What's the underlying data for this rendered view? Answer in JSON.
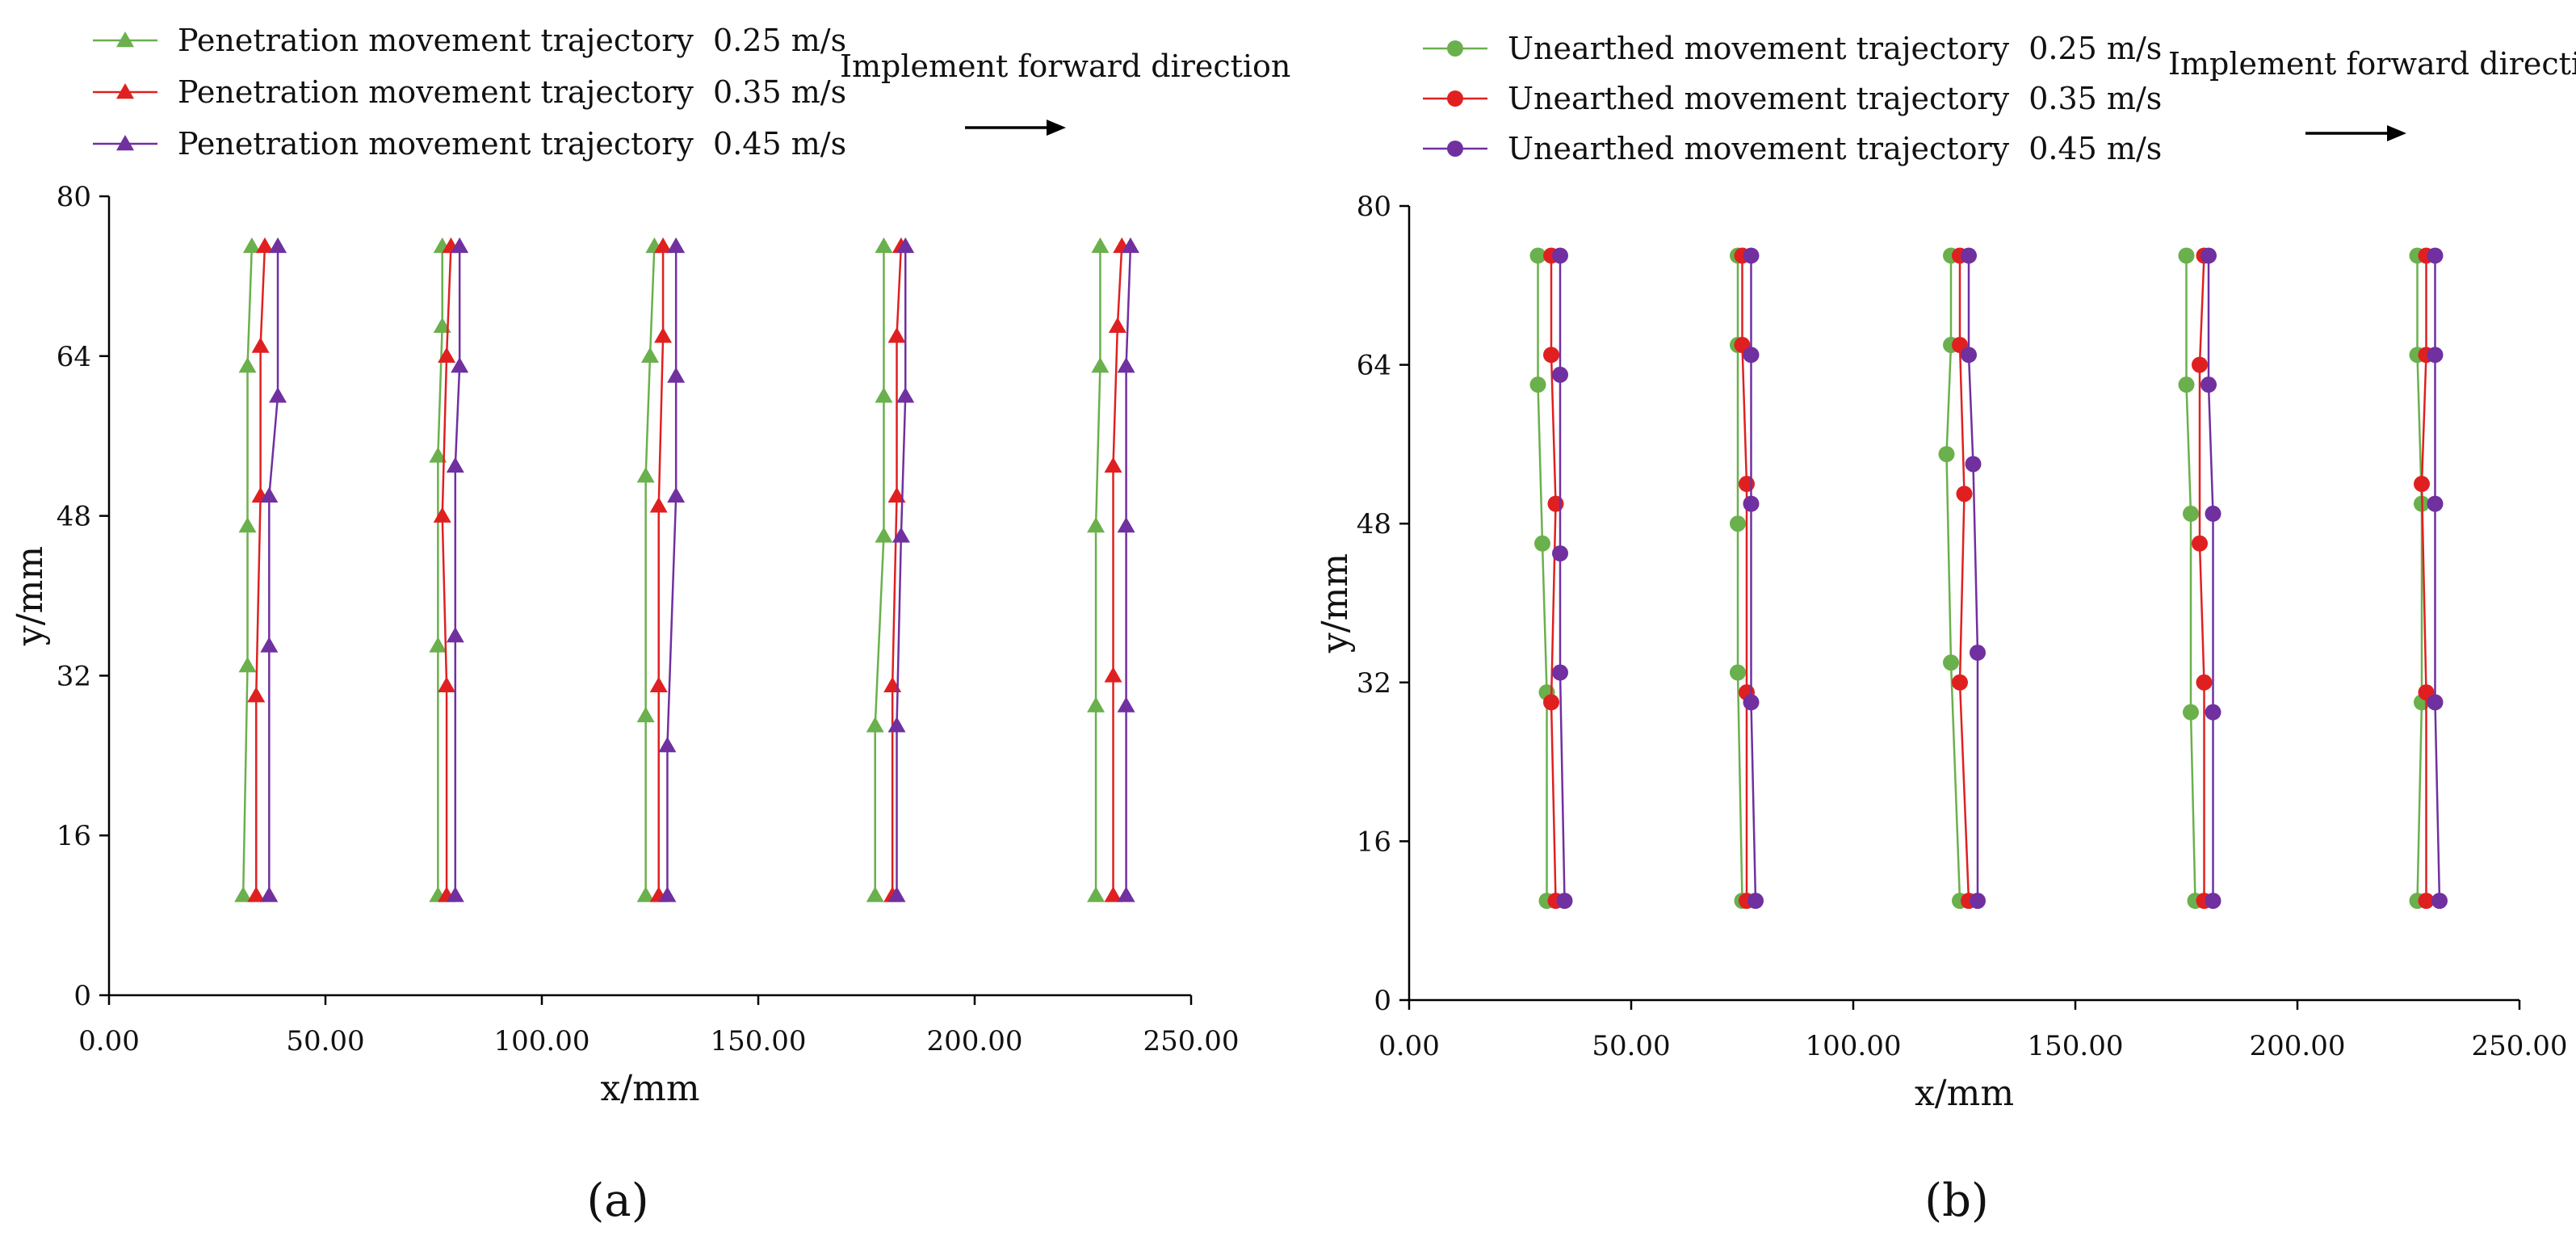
{
  "chart_data": [
    {
      "type": "line",
      "panel_label": "(a)",
      "xlabel": "x/mm",
      "ylabel": "y/mm",
      "xlim": [
        0,
        250
      ],
      "ylim": [
        0,
        80
      ],
      "x_ticks": [
        "0.00",
        "50.00",
        "100.00",
        "150.00",
        "200.00",
        "250.00"
      ],
      "y_ticks": [
        "0",
        "16",
        "32",
        "48",
        "64",
        "80"
      ],
      "grid": false,
      "legend_position": "top-left",
      "direction_label": "Implement forward direction",
      "marker": "triangle",
      "series": [
        {
          "name": "Penetration movement trajectory  0.25 m/s",
          "color": "#6ab04c",
          "paths": [
            [
              [
                31,
                10
              ],
              [
                32,
                33
              ],
              [
                32,
                47
              ],
              [
                32,
                63
              ],
              [
                33,
                75
              ]
            ],
            [
              [
                76,
                10
              ],
              [
                76,
                35
              ],
              [
                76,
                54
              ],
              [
                77,
                67
              ],
              [
                77,
                75
              ]
            ],
            [
              [
                124,
                10
              ],
              [
                124,
                28
              ],
              [
                124,
                52
              ],
              [
                125,
                64
              ],
              [
                126,
                75
              ]
            ],
            [
              [
                177,
                10
              ],
              [
                177,
                27
              ],
              [
                179,
                46
              ],
              [
                179,
                60
              ],
              [
                179,
                75
              ]
            ],
            [
              [
                228,
                10
              ],
              [
                228,
                29
              ],
              [
                228,
                47
              ],
              [
                229,
                63
              ],
              [
                229,
                75
              ]
            ]
          ]
        },
        {
          "name": "Penetration movement trajectory  0.35 m/s",
          "color": "#e02020",
          "paths": [
            [
              [
                34,
                10
              ],
              [
                34,
                30
              ],
              [
                35,
                50
              ],
              [
                35,
                65
              ],
              [
                36,
                75
              ]
            ],
            [
              [
                78,
                10
              ],
              [
                78,
                31
              ],
              [
                77,
                48
              ],
              [
                78,
                64
              ],
              [
                79,
                75
              ]
            ],
            [
              [
                127,
                10
              ],
              [
                127,
                31
              ],
              [
                127,
                49
              ],
              [
                128,
                66
              ],
              [
                128,
                75
              ]
            ],
            [
              [
                181,
                10
              ],
              [
                181,
                31
              ],
              [
                182,
                50
              ],
              [
                182,
                66
              ],
              [
                183,
                75
              ]
            ],
            [
              [
                232,
                10
              ],
              [
                232,
                32
              ],
              [
                232,
                53
              ],
              [
                233,
                67
              ],
              [
                234,
                75
              ]
            ]
          ]
        },
        {
          "name": "Penetration movement trajectory  0.45 m/s",
          "color": "#7030a0",
          "paths": [
            [
              [
                37,
                10
              ],
              [
                37,
                35
              ],
              [
                37,
                50
              ],
              [
                39,
                60
              ],
              [
                39,
                75
              ]
            ],
            [
              [
                80,
                10
              ],
              [
                80,
                36
              ],
              [
                80,
                53
              ],
              [
                81,
                63
              ],
              [
                81,
                75
              ]
            ],
            [
              [
                129,
                10
              ],
              [
                129,
                25
              ],
              [
                131,
                50
              ],
              [
                131,
                62
              ],
              [
                131,
                75
              ]
            ],
            [
              [
                182,
                10
              ],
              [
                182,
                27
              ],
              [
                183,
                46
              ],
              [
                184,
                60
              ],
              [
                184,
                75
              ]
            ],
            [
              [
                235,
                10
              ],
              [
                235,
                29
              ],
              [
                235,
                47
              ],
              [
                235,
                63
              ],
              [
                236,
                75
              ]
            ]
          ]
        }
      ]
    },
    {
      "type": "line",
      "panel_label": "(b)",
      "xlabel": "x/mm",
      "ylabel": "y/mm",
      "xlim": [
        0,
        250
      ],
      "ylim": [
        0,
        80
      ],
      "x_ticks": [
        "0.00",
        "50.00",
        "100.00",
        "150.00",
        "200.00",
        "250.00"
      ],
      "y_ticks": [
        "0",
        "16",
        "32",
        "48",
        "64",
        "80"
      ],
      "grid": false,
      "legend_position": "top-left",
      "direction_label": "Implement forward direction",
      "marker": "circle",
      "series": [
        {
          "name": "Unearthed movement trajectory  0.25 m/s",
          "color": "#6ab04c",
          "paths": [
            [
              [
                31,
                10
              ],
              [
                31,
                31
              ],
              [
                30,
                46
              ],
              [
                29,
                62
              ],
              [
                29,
                75
              ]
            ],
            [
              [
                75,
                10
              ],
              [
                74,
                33
              ],
              [
                74,
                48
              ],
              [
                74,
                66
              ],
              [
                74,
                75
              ]
            ],
            [
              [
                124,
                10
              ],
              [
                122,
                34
              ],
              [
                121,
                55
              ],
              [
                122,
                66
              ],
              [
                122,
                75
              ]
            ],
            [
              [
                177,
                10
              ],
              [
                176,
                29
              ],
              [
                176,
                49
              ],
              [
                175,
                62
              ],
              [
                175,
                75
              ]
            ],
            [
              [
                227,
                10
              ],
              [
                228,
                30
              ],
              [
                228,
                50
              ],
              [
                227,
                65
              ],
              [
                227,
                75
              ]
            ]
          ]
        },
        {
          "name": "Unearthed movement trajectory  0.35 m/s",
          "color": "#e02020",
          "paths": [
            [
              [
                33,
                10
              ],
              [
                32,
                30
              ],
              [
                33,
                50
              ],
              [
                32,
                65
              ],
              [
                32,
                75
              ]
            ],
            [
              [
                76,
                10
              ],
              [
                76,
                31
              ],
              [
                76,
                52
              ],
              [
                75,
                66
              ],
              [
                75,
                75
              ]
            ],
            [
              [
                126,
                10
              ],
              [
                124,
                32
              ],
              [
                125,
                51
              ],
              [
                124,
                66
              ],
              [
                124,
                75
              ]
            ],
            [
              [
                179,
                10
              ],
              [
                179,
                32
              ],
              [
                178,
                46
              ],
              [
                178,
                64
              ],
              [
                179,
                75
              ]
            ],
            [
              [
                229,
                10
              ],
              [
                229,
                31
              ],
              [
                228,
                52
              ],
              [
                229,
                65
              ],
              [
                229,
                75
              ]
            ]
          ]
        },
        {
          "name": "Unearthed movement trajectory  0.45 m/s",
          "color": "#7030a0",
          "paths": [
            [
              [
                35,
                10
              ],
              [
                34,
                33
              ],
              [
                34,
                45
              ],
              [
                34,
                63
              ],
              [
                34,
                75
              ]
            ],
            [
              [
                78,
                10
              ],
              [
                77,
                30
              ],
              [
                77,
                50
              ],
              [
                77,
                65
              ],
              [
                77,
                75
              ]
            ],
            [
              [
                128,
                10
              ],
              [
                128,
                35
              ],
              [
                127,
                54
              ],
              [
                126,
                65
              ],
              [
                126,
                75
              ]
            ],
            [
              [
                181,
                10
              ],
              [
                181,
                29
              ],
              [
                181,
                49
              ],
              [
                180,
                62
              ],
              [
                180,
                75
              ]
            ],
            [
              [
                232,
                10
              ],
              [
                231,
                30
              ],
              [
                231,
                50
              ],
              [
                231,
                65
              ],
              [
                231,
                75
              ]
            ]
          ]
        }
      ]
    }
  ]
}
